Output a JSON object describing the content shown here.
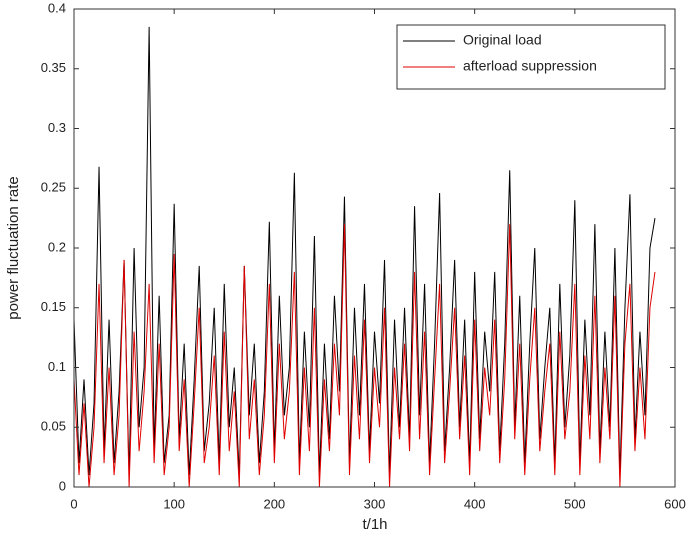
{
  "chart_data": {
    "type": "line",
    "xlabel": "t/1h",
    "ylabel": "power fluctuation rate",
    "xlim": [
      0,
      600
    ],
    "ylim": [
      0,
      0.4
    ],
    "xticks": [
      0,
      100,
      200,
      300,
      400,
      500,
      600
    ],
    "yticks": [
      0,
      0.05,
      0.1,
      0.15,
      0.2,
      0.25,
      0.3,
      0.35,
      0.4
    ],
    "legend": "upper right",
    "x": [
      0,
      5,
      10,
      15,
      20,
      25,
      30,
      35,
      40,
      45,
      50,
      55,
      60,
      65,
      70,
      75,
      80,
      85,
      90,
      95,
      100,
      105,
      110,
      115,
      120,
      125,
      130,
      135,
      140,
      145,
      150,
      155,
      160,
      165,
      170,
      175,
      180,
      185,
      190,
      195,
      200,
      205,
      210,
      215,
      220,
      225,
      230,
      235,
      240,
      245,
      250,
      255,
      260,
      265,
      270,
      275,
      280,
      285,
      290,
      295,
      300,
      305,
      310,
      315,
      320,
      325,
      330,
      335,
      340,
      345,
      350,
      355,
      360,
      365,
      370,
      375,
      380,
      385,
      390,
      395,
      400,
      405,
      410,
      415,
      420,
      425,
      430,
      435,
      440,
      445,
      450,
      455,
      460,
      465,
      470,
      475,
      480,
      485,
      490,
      495,
      500,
      505,
      510,
      515,
      520,
      525,
      530,
      535,
      540,
      545,
      550,
      555,
      560,
      565,
      570,
      575,
      580
    ],
    "series": [
      {
        "name": "Original load",
        "color": "#000000",
        "values": [
          0.14,
          0.02,
          0.09,
          0.01,
          0.07,
          0.268,
          0.03,
          0.14,
          0.02,
          0.08,
          0.19,
          0.01,
          0.2,
          0.05,
          0.1,
          0.385,
          0.03,
          0.16,
          0.02,
          0.06,
          0.237,
          0.04,
          0.12,
          0.01,
          0.09,
          0.185,
          0.03,
          0.07,
          0.15,
          0.02,
          0.17,
          0.05,
          0.1,
          0.01,
          0.185,
          0.06,
          0.12,
          0.02,
          0.08,
          0.222,
          0.03,
          0.16,
          0.06,
          0.1,
          0.263,
          0.02,
          0.13,
          0.05,
          0.21,
          0.01,
          0.12,
          0.04,
          0.16,
          0.08,
          0.243,
          0.02,
          0.15,
          0.06,
          0.17,
          0.03,
          0.13,
          0.07,
          0.19,
          0.01,
          0.14,
          0.05,
          0.15,
          0.04,
          0.235,
          0.06,
          0.17,
          0.02,
          0.12,
          0.246,
          0.03,
          0.1,
          0.19,
          0.05,
          0.14,
          0.02,
          0.18,
          0.04,
          0.13,
          0.08,
          0.18,
          0.03,
          0.12,
          0.265,
          0.05,
          0.16,
          0.02,
          0.12,
          0.2,
          0.04,
          0.1,
          0.15,
          0.02,
          0.17,
          0.05,
          0.11,
          0.24,
          0.02,
          0.14,
          0.06,
          0.22,
          0.03,
          0.13,
          0.05,
          0.2,
          0.01,
          0.15,
          0.245,
          0.04,
          0.13,
          0.06,
          0.2,
          0.225
        ]
      },
      {
        "name": "afterload suppression",
        "color": "#e00000",
        "values": [
          0.09,
          0.01,
          0.07,
          0.0,
          0.05,
          0.17,
          0.02,
          0.1,
          0.01,
          0.06,
          0.19,
          0.0,
          0.13,
          0.03,
          0.08,
          0.17,
          0.02,
          0.12,
          0.01,
          0.05,
          0.195,
          0.03,
          0.09,
          0.0,
          0.07,
          0.15,
          0.02,
          0.05,
          0.11,
          0.01,
          0.13,
          0.03,
          0.08,
          0.0,
          0.185,
          0.04,
          0.09,
          0.01,
          0.06,
          0.17,
          0.02,
          0.12,
          0.04,
          0.08,
          0.18,
          0.01,
          0.1,
          0.03,
          0.15,
          0.0,
          0.09,
          0.03,
          0.12,
          0.06,
          0.22,
          0.01,
          0.11,
          0.04,
          0.14,
          0.02,
          0.1,
          0.05,
          0.15,
          0.0,
          0.1,
          0.04,
          0.12,
          0.03,
          0.18,
          0.04,
          0.13,
          0.01,
          0.09,
          0.17,
          0.02,
          0.08,
          0.15,
          0.04,
          0.11,
          0.01,
          0.14,
          0.03,
          0.1,
          0.06,
          0.14,
          0.02,
          0.09,
          0.22,
          0.04,
          0.12,
          0.01,
          0.09,
          0.15,
          0.03,
          0.08,
          0.12,
          0.01,
          0.13,
          0.04,
          0.08,
          0.17,
          0.01,
          0.11,
          0.04,
          0.16,
          0.02,
          0.1,
          0.04,
          0.16,
          0.0,
          0.12,
          0.17,
          0.03,
          0.1,
          0.04,
          0.15,
          0.18
        ]
      }
    ]
  }
}
